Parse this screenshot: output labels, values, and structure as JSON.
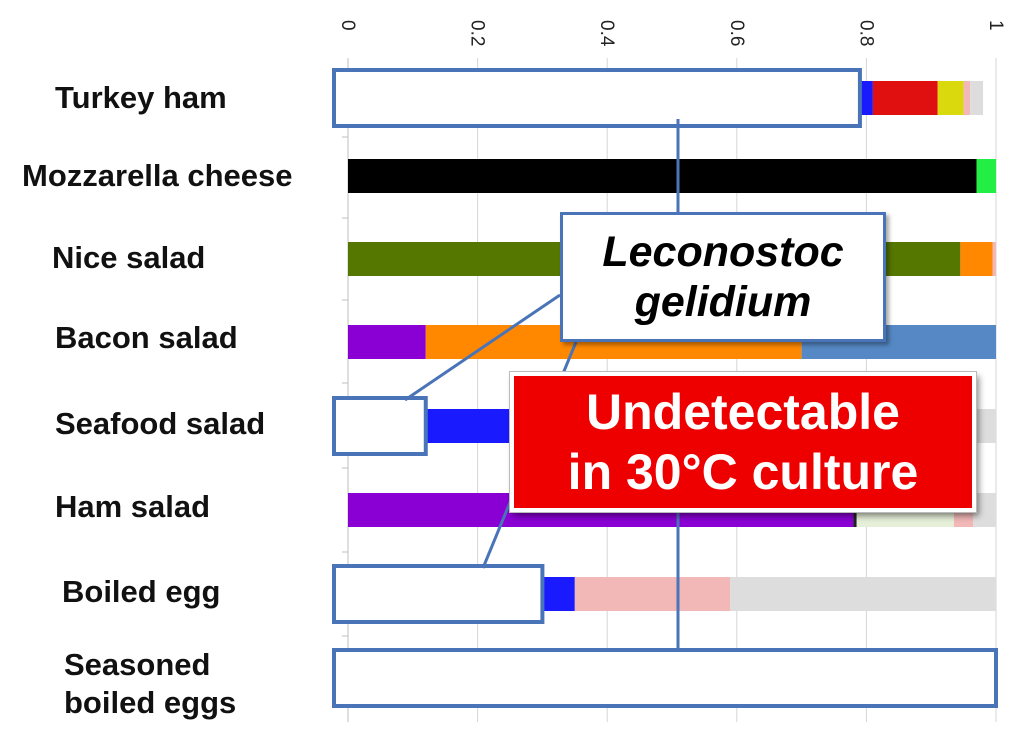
{
  "chart_data": {
    "type": "bar",
    "orientation": "horizontal",
    "stacked": true,
    "xlim": [
      0,
      1
    ],
    "xticks": [
      "0",
      "0.2",
      "0.4",
      "0.6",
      "0.8",
      "1"
    ],
    "grid": true,
    "categories": [
      "Turkey ham",
      "Mozzarella cheese",
      "Nice salad",
      "Bacon salad",
      "Seafood salad",
      "Ham salad",
      "Boiled egg",
      "Seasoned\nboiled eggs"
    ],
    "rows": [
      {
        "highlight": 0.79,
        "segments": [
          {
            "value": 0.02,
            "color": "#1a1aff"
          },
          {
            "value": 0.1,
            "color": "#e01010"
          },
          {
            "value": 0.04,
            "color": "#d9d90d"
          },
          {
            "value": 0.01,
            "color": "#f2b8b8"
          },
          {
            "value": 0.02,
            "color": "#dddddd"
          }
        ]
      },
      {
        "highlight": 0,
        "segments": [
          {
            "value": 0.97,
            "color": "#000000"
          },
          {
            "value": 0.03,
            "color": "#22ee44"
          }
        ]
      },
      {
        "highlight": 0,
        "segments": [
          {
            "value": 0.945,
            "color": "#557700"
          },
          {
            "value": 0.05,
            "color": "#ff8800"
          },
          {
            "value": 0.005,
            "color": "#f2b8b8"
          }
        ]
      },
      {
        "highlight": 0,
        "segments": [
          {
            "value": 0.12,
            "color": "#8a00d4"
          },
          {
            "value": 0.58,
            "color": "#ff8800"
          },
          {
            "value": 0.3,
            "color": "#5588c4"
          }
        ]
      },
      {
        "highlight": 0.12,
        "segments": [
          {
            "value": 0.24,
            "color": "#1a1aff"
          },
          {
            "value": 0.58,
            "color": "#dddddd"
          },
          {
            "value": 0.06,
            "color": "#dddddd"
          }
        ]
      },
      {
        "highlight": 0,
        "segments": [
          {
            "value": 0.78,
            "color": "#8a00d4"
          },
          {
            "value": 0.005,
            "color": "#222222"
          },
          {
            "value": 0.15,
            "color": "#e6f0d8"
          },
          {
            "value": 0.03,
            "color": "#f2b8b8"
          },
          {
            "value": 0.035,
            "color": "#dddddd"
          }
        ]
      },
      {
        "highlight": 0.3,
        "segments": [
          {
            "value": 0.05,
            "color": "#1a1aff"
          },
          {
            "value": 0.24,
            "color": "#f2b8b8"
          },
          {
            "value": 0.41,
            "color": "#dddddd"
          }
        ]
      },
      {
        "highlight": 1.0,
        "segments": []
      }
    ],
    "highlight_color": "#4a74b8"
  },
  "callouts": {
    "species": "Leconostoc\ngelidium",
    "undetectable": "Undetectable\nin 30°C culture"
  }
}
